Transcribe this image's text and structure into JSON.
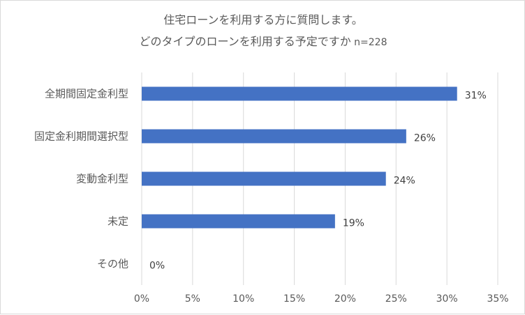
{
  "chart_data": {
    "type": "bar",
    "orientation": "horizontal",
    "title": "住宅ローンを利用する方に質問します。",
    "subtitle": "どのタイプのローンを利用する予定ですか",
    "sample_size": "n=228",
    "categories": [
      "全期間固定金利型",
      "固定金利期間選択型",
      "変動金利型",
      "未定",
      "その他"
    ],
    "values": [
      31,
      26,
      24,
      19,
      0
    ],
    "value_labels": [
      "31%",
      "26%",
      "24%",
      "19%",
      "0%"
    ],
    "xlim": [
      0,
      35
    ],
    "xticks": [
      0,
      5,
      10,
      15,
      20,
      25,
      30,
      35
    ],
    "xtick_labels": [
      "0%",
      "5%",
      "10%",
      "15%",
      "20%",
      "25%",
      "30%",
      "35%"
    ],
    "xlabel": "",
    "ylabel": "",
    "grid": "vertical",
    "legend": "none",
    "bar_color": "#4472c4",
    "grid_color": "#d9d9d9"
  }
}
